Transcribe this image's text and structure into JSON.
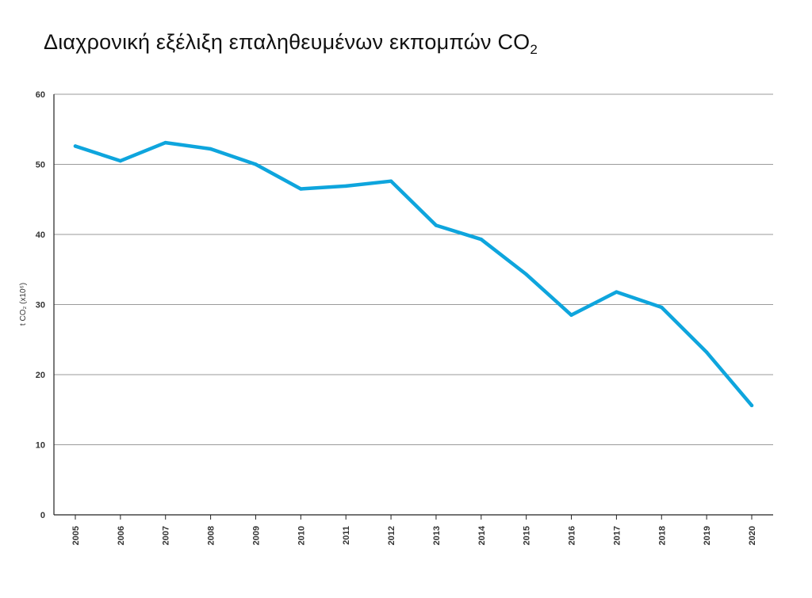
{
  "chart_data": {
    "type": "line",
    "title": "Διαχρονική εξέλιξη επαληθευμένων εκπομπών CO",
    "title_subscript": "2",
    "ylabel": "t CO₂ (x10⁶)",
    "xlabel": "",
    "ylim": [
      0,
      60
    ],
    "yticks": [
      0,
      10,
      20,
      30,
      40,
      50,
      60
    ],
    "grid": true,
    "legend": "none",
    "categories": [
      "2005",
      "2006",
      "2007",
      "2008",
      "2009",
      "2010",
      "2011",
      "2012",
      "2013",
      "2014",
      "2015",
      "2016",
      "2017",
      "2018",
      "2019",
      "2020"
    ],
    "series": [
      {
        "color": "#0ea5dd",
        "values": [
          52.6,
          50.5,
          53.1,
          52.2,
          50.0,
          46.5,
          46.9,
          47.6,
          41.3,
          39.3,
          34.3,
          28.5,
          31.8,
          29.6,
          23.2,
          15.6
        ]
      }
    ]
  }
}
